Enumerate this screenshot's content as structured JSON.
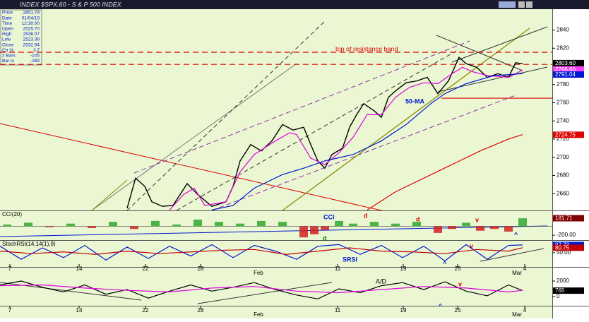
{
  "title": "INDEX $SPX.60 - S & P 500 INDEX",
  "info": [
    [
      "Price",
      "2851.79"
    ],
    [
      "Date",
      "01/04/19"
    ],
    [
      "Time",
      "12:30:00"
    ],
    [
      "Open",
      "2525.70"
    ],
    [
      "High",
      "2538.07"
    ],
    [
      "Low",
      "2523.39"
    ],
    [
      "Close",
      "2532.94"
    ],
    [
      "Ctr %",
      "3.7"
    ],
    [
      "# Bars",
      "-105"
    ],
    [
      "Bar Ix",
      "-269"
    ]
  ],
  "annotations": [
    "top  of resistance band",
    "50-MA",
    "CCI",
    "d",
    "d",
    "d",
    "v",
    "^",
    "SRSI",
    "v",
    "^",
    "A/D",
    "v",
    "^"
  ],
  "chart_data": [
    {
      "type": "line",
      "xlim": [
        0,
        782
      ],
      "ylim": [
        2641.5,
        2862.2
      ],
      "xticks": [
        {
          "value": 14,
          "label": "7"
        },
        {
          "value": 112,
          "label": "14"
        },
        {
          "value": 206,
          "label": "22"
        },
        {
          "value": 284,
          "label": "28"
        },
        {
          "value": 478,
          "label": "11"
        },
        {
          "value": 571,
          "label": "19"
        },
        {
          "value": 648,
          "label": "25"
        },
        {
          "value": 743,
          "label": "4"
        }
      ],
      "months": [
        {
          "value": 366,
          "label": "Feb"
        },
        {
          "value": 732,
          "label": "Mar"
        }
      ],
      "yticks": [
        2840,
        2820,
        2780,
        2760,
        2740,
        2720,
        2700,
        2680,
        2660
      ],
      "series": [
        {
          "color": "#000000",
          "x": [
            180,
            192,
            205,
            215,
            230,
            245,
            265,
            280,
            300,
            320,
            330,
            340,
            355,
            370,
            385,
            400,
            415,
            430,
            440,
            450,
            460,
            470,
            485,
            495,
            505,
            515,
            530,
            540,
            550,
            560,
            575,
            590,
            605,
            620,
            635,
            650,
            660,
            675,
            690,
            705,
            720,
            730,
            740
          ],
          "values": [
            2644,
            2677,
            2668,
            2651,
            2646,
            2647,
            2671,
            2659,
            2646,
            2651,
            2668,
            2696,
            2714,
            2707,
            2718,
            2736,
            2730,
            2733,
            2714,
            2696,
            2688,
            2703,
            2710,
            2733,
            2747,
            2759,
            2751,
            2744,
            2766,
            2773,
            2782,
            2784,
            2788,
            2770,
            2784,
            2810,
            2803,
            2799,
            2788,
            2792,
            2788,
            2804,
            2803
          ]
        },
        {
          "color": "#e000e0",
          "x": [
            240,
            260,
            275,
            290,
            320,
            340,
            360,
            390,
            410,
            420,
            440,
            460,
            480,
            500,
            520,
            540,
            560,
            580,
            600,
            620,
            640,
            655,
            670,
            690,
            720,
            740
          ],
          "values": [
            2642,
            2659,
            2666,
            2647,
            2651,
            2684,
            2703,
            2718,
            2727,
            2725,
            2699,
            2692,
            2705,
            2722,
            2747,
            2747,
            2766,
            2777,
            2782,
            2781,
            2792,
            2799,
            2794,
            2790,
            2788,
            2796
          ]
        },
        {
          "color": "#0018d0",
          "x": [
            300,
            330,
            360,
            400,
            430,
            460,
            500,
            540,
            575,
            610,
            630,
            660,
            700,
            740
          ],
          "values": [
            2642,
            2647,
            2666,
            2681,
            2688,
            2696,
            2703,
            2718,
            2736,
            2759,
            2770,
            2781,
            2790,
            2792
          ]
        },
        {
          "color": "#e00000",
          "x": [
            520,
            560,
            600,
            640,
            680,
            720,
            740
          ],
          "values": [
            2642,
            2662,
            2677,
            2692,
            2707,
            2720,
            2725
          ]
        }
      ],
      "hlines": [
        {
          "value": 2815.6,
          "color": "#e00000",
          "dash": true,
          "from": 0
        },
        {
          "value": 2802.2,
          "color": "#e00000",
          "dash": true,
          "from": 0
        },
        {
          "value": 2765,
          "color": "#e00000",
          "dash": false,
          "from": 625
        }
      ],
      "last_labels": [
        {
          "value": 2803.6,
          "label": "2803.60",
          "color": "#000000"
        },
        {
          "value": 2796.6,
          "label": "2796.60",
          "color": "#ff40ff"
        },
        {
          "value": 2791.04,
          "label": "2791.04",
          "color": "#0018d0"
        },
        {
          "value": 2724.75,
          "label": "2724.75",
          "color": "#e00000"
        }
      ]
    },
    {
      "type": "bar",
      "title": "CCI(20)",
      "xlim": [
        0,
        782
      ],
      "ylim": [
        -311,
        325
      ],
      "yticks": [
        {
          "value": -200,
          "label": "-200.00"
        }
      ],
      "x": [
        10,
        40,
        70,
        100,
        130,
        160,
        190,
        220,
        250,
        280,
        310,
        340,
        370,
        400,
        430,
        445,
        460,
        480,
        500,
        530,
        560,
        590,
        620,
        640,
        660,
        680,
        700,
        720,
        740
      ],
      "values": [
        40,
        80,
        -20,
        60,
        -40,
        100,
        -60,
        120,
        40,
        150,
        100,
        60,
        120,
        100,
        -250,
        -180,
        -80,
        120,
        60,
        100,
        60,
        100,
        -150,
        -60,
        80,
        -100,
        -60,
        -120,
        180
      ],
      "last_labels": [
        {
          "value": 181.71,
          "label": "181.71",
          "color": "#800000"
        }
      ]
    },
    {
      "type": "line",
      "title": "StochRSI(14,14(1),9)",
      "xlim": [
        0,
        782
      ],
      "ylim": [
        -37,
        119
      ],
      "yticks": [
        {
          "value": 50,
          "label": "50.00"
        }
      ],
      "series": [
        {
          "color": "#0018d0",
          "x": [
            0,
            30,
            60,
            90,
            120,
            150,
            180,
            210,
            240,
            270,
            300,
            330,
            360,
            390,
            420,
            450,
            480,
            510,
            540,
            570,
            600,
            630,
            660,
            690,
            720,
            740
          ],
          "values": [
            90,
            10,
            80,
            20,
            95,
            5,
            85,
            15,
            90,
            30,
            100,
            20,
            95,
            60,
            10,
            90,
            100,
            40,
            95,
            20,
            90,
            0,
            100,
            10,
            95,
            97.78
          ]
        },
        {
          "color": "#c00000",
          "x": [
            0,
            45,
            90,
            135,
            180,
            225,
            270,
            315,
            360,
            405,
            450,
            495,
            540,
            585,
            630,
            675,
            720,
            740
          ],
          "values": [
            60,
            45,
            55,
            40,
            60,
            45,
            55,
            65,
            70,
            40,
            60,
            80,
            60,
            55,
            45,
            70,
            60,
            80.75
          ]
        }
      ],
      "last_labels": [
        {
          "value": 97.78,
          "label": "97.78",
          "color": "#0018d0"
        },
        {
          "value": 80.75,
          "label": "80.75",
          "color": "#c00000"
        }
      ]
    },
    {
      "type": "line",
      "title": "A/D",
      "xlim": [
        0,
        782
      ],
      "ylim": [
        -1091,
        3182
      ],
      "yticks": [
        2000,
        0
      ],
      "series": [
        {
          "color": "#000000",
          "x": [
            0,
            30,
            60,
            90,
            120,
            150,
            180,
            210,
            240,
            270,
            300,
            330,
            360,
            390,
            420,
            450,
            480,
            510,
            540,
            570,
            600,
            630,
            660,
            690,
            720,
            740
          ],
          "values": [
            1500,
            2000,
            1200,
            600,
            1500,
            300,
            900,
            -200,
            700,
            1500,
            700,
            1200,
            1800,
            900,
            200,
            -300,
            1000,
            500,
            1400,
            1800,
            900,
            1900,
            700,
            100,
            1500,
            765
          ]
        },
        {
          "color": "#e000e0",
          "x": [
            0,
            60,
            120,
            180,
            240,
            300,
            360,
            420,
            480,
            540,
            600,
            660,
            720,
            740
          ],
          "values": [
            1400,
            1500,
            1100,
            800,
            600,
            1100,
            1300,
            700,
            500,
            900,
            1300,
            1100,
            600,
            800
          ]
        }
      ],
      "last_labels": [
        {
          "value": 765,
          "label": "765",
          "color": "#000000"
        }
      ]
    }
  ]
}
